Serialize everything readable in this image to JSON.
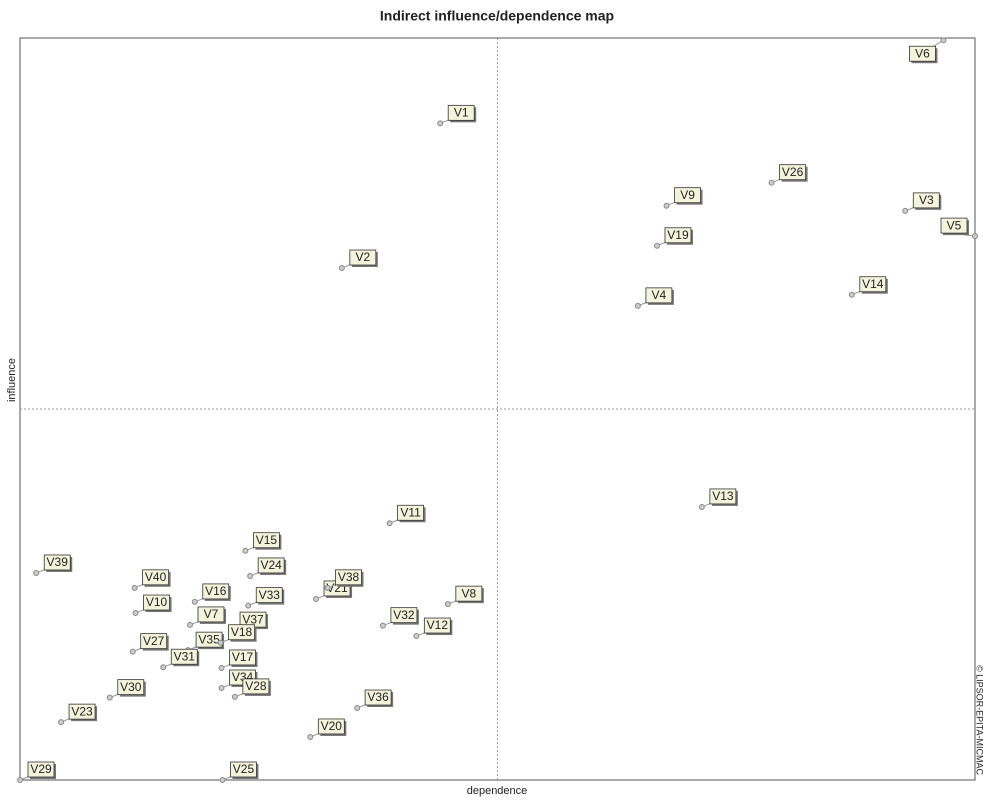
{
  "chart_data": {
    "type": "scatter",
    "title": "Indirect influence/dependence map",
    "x_label": "dependence",
    "y_label": "influence",
    "credit": "© LIPSOR-EPITA-MICMAC",
    "xlim": [
      0,
      100
    ],
    "ylim": [
      0,
      100
    ],
    "marker_color": "#888888",
    "label_fill": "#f4f4dc",
    "labels": [
      "V6",
      "V1",
      "V26",
      "V9",
      "V3",
      "V19",
      "V5",
      "V2",
      "V14",
      "V4",
      "V13",
      "V11",
      "V39",
      "V40",
      "V15",
      "V24",
      "V21",
      "V38",
      "V33",
      "V8",
      "V10",
      "V16",
      "V7",
      "V32",
      "V37",
      "V27",
      "V35",
      "V12",
      "V18",
      "V17",
      "V34",
      "V31",
      "V30",
      "V36",
      "V28",
      "V23",
      "V20",
      "V29",
      "V25"
    ],
    "x": [
      96.7,
      44.0,
      78.7,
      67.7,
      92.7,
      66.7,
      100,
      33.7,
      87.1,
      64.7,
      71.4,
      38.7,
      1.7,
      12.0,
      23.6,
      24.1,
      31.0,
      32.2,
      23.9,
      44.8,
      12.1,
      18.3,
      17.8,
      38.0,
      22.2,
      11.8,
      17.6,
      41.5,
      21.0,
      21.1,
      21.1,
      15.0,
      9.4,
      35.3,
      22.5,
      4.3,
      30.4,
      0,
      21.2
    ],
    "y": [
      99.7,
      88.5,
      80.5,
      77.4,
      76.7,
      72.0,
      73.3,
      69.0,
      65.4,
      63.9,
      36.8,
      34.6,
      27.9,
      25.9,
      30.9,
      27.5,
      24.4,
      25.9,
      23.5,
      23.7,
      22.5,
      24.0,
      20.9,
      20.8,
      20.2,
      17.3,
      17.5,
      19.4,
      18.5,
      15.1,
      12.4,
      15.2,
      11.1,
      9.7,
      11.2,
      7.8,
      5.8,
      0,
      0
    ]
  }
}
